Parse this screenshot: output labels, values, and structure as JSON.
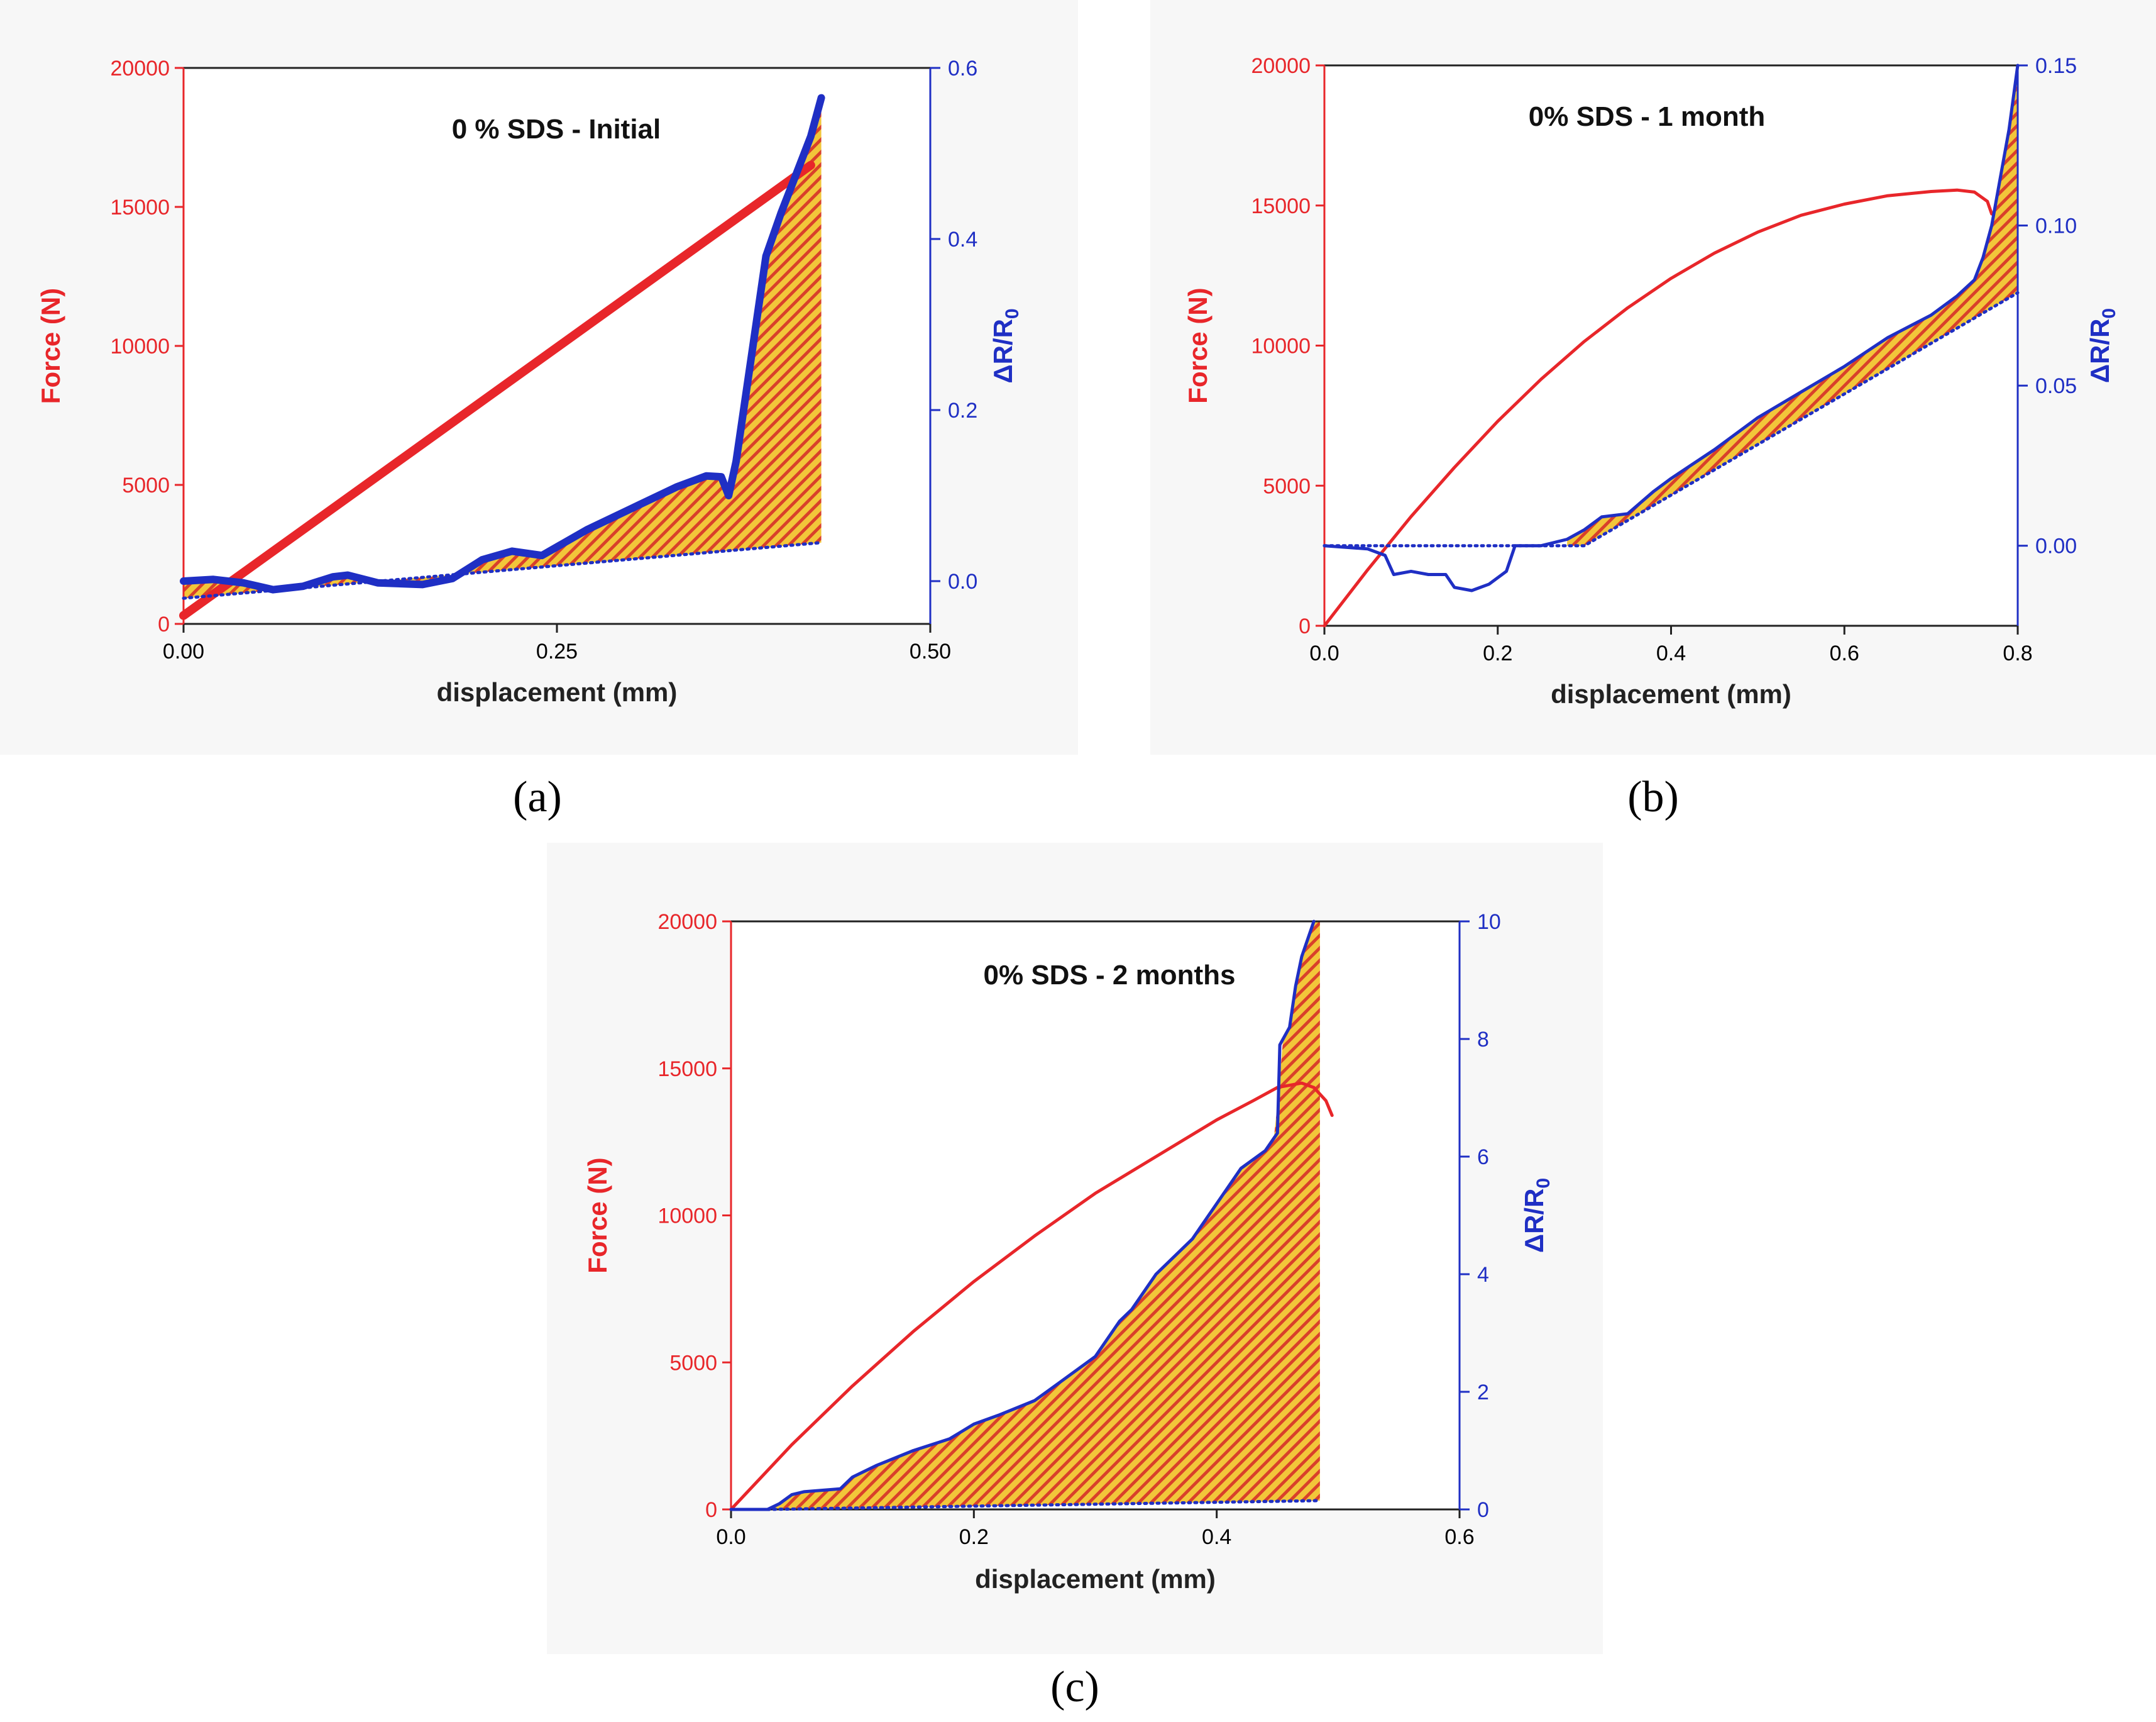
{
  "figure": {
    "panels": [
      {
        "caption": "(a)"
      },
      {
        "caption": "(b)"
      },
      {
        "caption": "(c)"
      }
    ]
  },
  "colors": {
    "force": "#e8262a",
    "resistance": "#1f2fc4",
    "fill_yellow": "#f2c63a",
    "fill_red": "#d9402a",
    "panel_bg": "#f7f7f7",
    "text": "#000000"
  },
  "chart_data": [
    {
      "type": "line",
      "title": "0 % SDS - Initial",
      "xlabel": "displacement (mm)",
      "ylabel": "Force (N)",
      "y2label": "ΔR/R0",
      "xlim": [
        0,
        0.5
      ],
      "ylim": [
        0,
        20000
      ],
      "y2lim": [
        -0.05,
        0.6
      ],
      "xticks": [
        "0.00",
        "0.25",
        "0.50"
      ],
      "xtick_values": [
        0,
        0.25,
        0.5
      ],
      "yticks": [
        "0",
        "5000",
        "10000",
        "15000",
        "20000"
      ],
      "ytick_values": [
        0,
        5000,
        10000,
        15000,
        20000
      ],
      "y2ticks": [
        "0.0",
        "0.2",
        "0.4",
        "0.6"
      ],
      "y2tick_values": [
        0,
        0.2,
        0.4,
        0.6
      ],
      "series": [
        {
          "axis": "left",
          "style": "thick-solid",
          "x": [
            0.0,
            0.42
          ],
          "y": [
            300,
            16500
          ]
        },
        {
          "axis": "right",
          "style": "thick-solid",
          "x": [
            0.0,
            0.02,
            0.04,
            0.06,
            0.08,
            0.1,
            0.11,
            0.13,
            0.16,
            0.18,
            0.2,
            0.22,
            0.24,
            0.27,
            0.3,
            0.33,
            0.35,
            0.36,
            0.365,
            0.37,
            0.38,
            0.39,
            0.4,
            0.41,
            0.42,
            0.427
          ],
          "y": [
            0.0,
            0.002,
            -0.002,
            -0.01,
            -0.006,
            0.005,
            0.007,
            -0.002,
            -0.004,
            0.003,
            0.025,
            0.035,
            0.03,
            0.06,
            0.085,
            0.11,
            0.123,
            0.122,
            0.1,
            0.14,
            0.26,
            0.38,
            0.43,
            0.475,
            0.52,
            0.565
          ]
        },
        {
          "axis": "right",
          "style": "dotted",
          "x": [
            0.0,
            0.427
          ],
          "y": [
            -0.02,
            0.045
          ]
        }
      ],
      "fill_between": {
        "x": [
          0.0,
          0.427
        ]
      }
    },
    {
      "type": "line",
      "title": "0% SDS - 1 month",
      "xlabel": "displacement (mm)",
      "ylabel": "Force (N)",
      "y2label": "ΔR/R0",
      "xlim": [
        0,
        0.8
      ],
      "ylim": [
        0,
        20000
      ],
      "y2lim": [
        -0.025,
        0.15
      ],
      "xticks": [
        "0.0",
        "0.2",
        "0.4",
        "0.6",
        "0.8"
      ],
      "xtick_values": [
        0,
        0.2,
        0.4,
        0.6,
        0.8
      ],
      "yticks": [
        "0",
        "5000",
        "10000",
        "15000",
        "20000"
      ],
      "ytick_values": [
        0,
        5000,
        10000,
        15000,
        20000
      ],
      "y2ticks": [
        "0.00",
        "0.05",
        "0.10",
        "0.15"
      ],
      "y2tick_values": [
        0,
        0.05,
        0.1,
        0.15
      ],
      "series": [
        {
          "axis": "left",
          "style": "solid",
          "x": [
            0.0,
            0.05,
            0.1,
            0.15,
            0.2,
            0.25,
            0.3,
            0.35,
            0.4,
            0.45,
            0.5,
            0.55,
            0.6,
            0.65,
            0.7,
            0.73,
            0.75,
            0.765,
            0.77
          ],
          "y": [
            0,
            2000,
            3900,
            5650,
            7300,
            8800,
            10150,
            11350,
            12400,
            13300,
            14050,
            14650,
            15050,
            15350,
            15500,
            15550,
            15480,
            15150,
            14700
          ]
        },
        {
          "axis": "right",
          "style": "solid",
          "x": [
            0.0,
            0.05,
            0.07,
            0.08,
            0.1,
            0.12,
            0.14,
            0.15,
            0.17,
            0.19,
            0.21,
            0.22,
            0.25,
            0.28,
            0.3,
            0.32,
            0.35,
            0.38,
            0.4,
            0.45,
            0.5,
            0.55,
            0.6,
            0.65,
            0.7,
            0.73,
            0.75,
            0.76,
            0.77,
            0.78,
            0.79,
            0.8
          ],
          "y": [
            0.0,
            -0.001,
            -0.003,
            -0.009,
            -0.008,
            -0.009,
            -0.009,
            -0.013,
            -0.014,
            -0.012,
            -0.008,
            0.0,
            0.0,
            0.002,
            0.005,
            0.009,
            0.01,
            0.017,
            0.021,
            0.03,
            0.04,
            0.048,
            0.056,
            0.065,
            0.072,
            0.078,
            0.083,
            0.09,
            0.1,
            0.115,
            0.13,
            0.15
          ]
        },
        {
          "axis": "right",
          "style": "dotted",
          "x": [
            0.0,
            0.3,
            0.8
          ],
          "y": [
            0.0,
            0.0,
            0.079
          ]
        }
      ],
      "fill_between": {
        "x": [
          0.28,
          0.8
        ]
      }
    },
    {
      "type": "line",
      "title": "0% SDS - 2 months",
      "xlabel": "displacement (mm)",
      "ylabel": "Force (N)",
      "y2label": "ΔR/R0",
      "xlim": [
        0,
        0.6
      ],
      "ylim": [
        0,
        20000
      ],
      "y2lim": [
        0,
        10
      ],
      "xticks": [
        "0.0",
        "0.2",
        "0.4",
        "0.6"
      ],
      "xtick_values": [
        0,
        0.2,
        0.4,
        0.6
      ],
      "yticks": [
        "0",
        "5000",
        "10000",
        "15000",
        "20000"
      ],
      "ytick_values": [
        0,
        5000,
        10000,
        15000,
        20000
      ],
      "y2ticks": [
        "0",
        "2",
        "4",
        "6",
        "8",
        "10"
      ],
      "y2tick_values": [
        0,
        2,
        4,
        6,
        8,
        10
      ],
      "series": [
        {
          "axis": "left",
          "style": "solid",
          "x": [
            0.0,
            0.05,
            0.1,
            0.15,
            0.2,
            0.25,
            0.3,
            0.35,
            0.4,
            0.43,
            0.45,
            0.47,
            0.48,
            0.49,
            0.495
          ],
          "y": [
            0,
            2200,
            4200,
            6050,
            7750,
            9300,
            10750,
            12000,
            13250,
            13900,
            14350,
            14500,
            14350,
            13900,
            13400
          ]
        },
        {
          "axis": "right",
          "style": "solid",
          "x": [
            0.0,
            0.03,
            0.04,
            0.05,
            0.06,
            0.09,
            0.1,
            0.12,
            0.15,
            0.18,
            0.2,
            0.22,
            0.25,
            0.27,
            0.3,
            0.32,
            0.33,
            0.35,
            0.38,
            0.4,
            0.42,
            0.44,
            0.45,
            0.452,
            0.46,
            0.465,
            0.47,
            0.48
          ],
          "y": [
            0.0,
            0.0,
            0.1,
            0.25,
            0.3,
            0.35,
            0.55,
            0.75,
            1.0,
            1.2,
            1.45,
            1.6,
            1.85,
            2.15,
            2.6,
            3.2,
            3.4,
            4.0,
            4.6,
            5.2,
            5.8,
            6.1,
            6.4,
            7.9,
            8.2,
            8.9,
            9.4,
            10.0
          ]
        },
        {
          "axis": "right",
          "style": "dotted",
          "x": [
            0.03,
            0.485
          ],
          "y": [
            0.0,
            0.15
          ]
        }
      ],
      "fill_between": {
        "x": [
          0.03,
          0.485
        ]
      }
    }
  ]
}
